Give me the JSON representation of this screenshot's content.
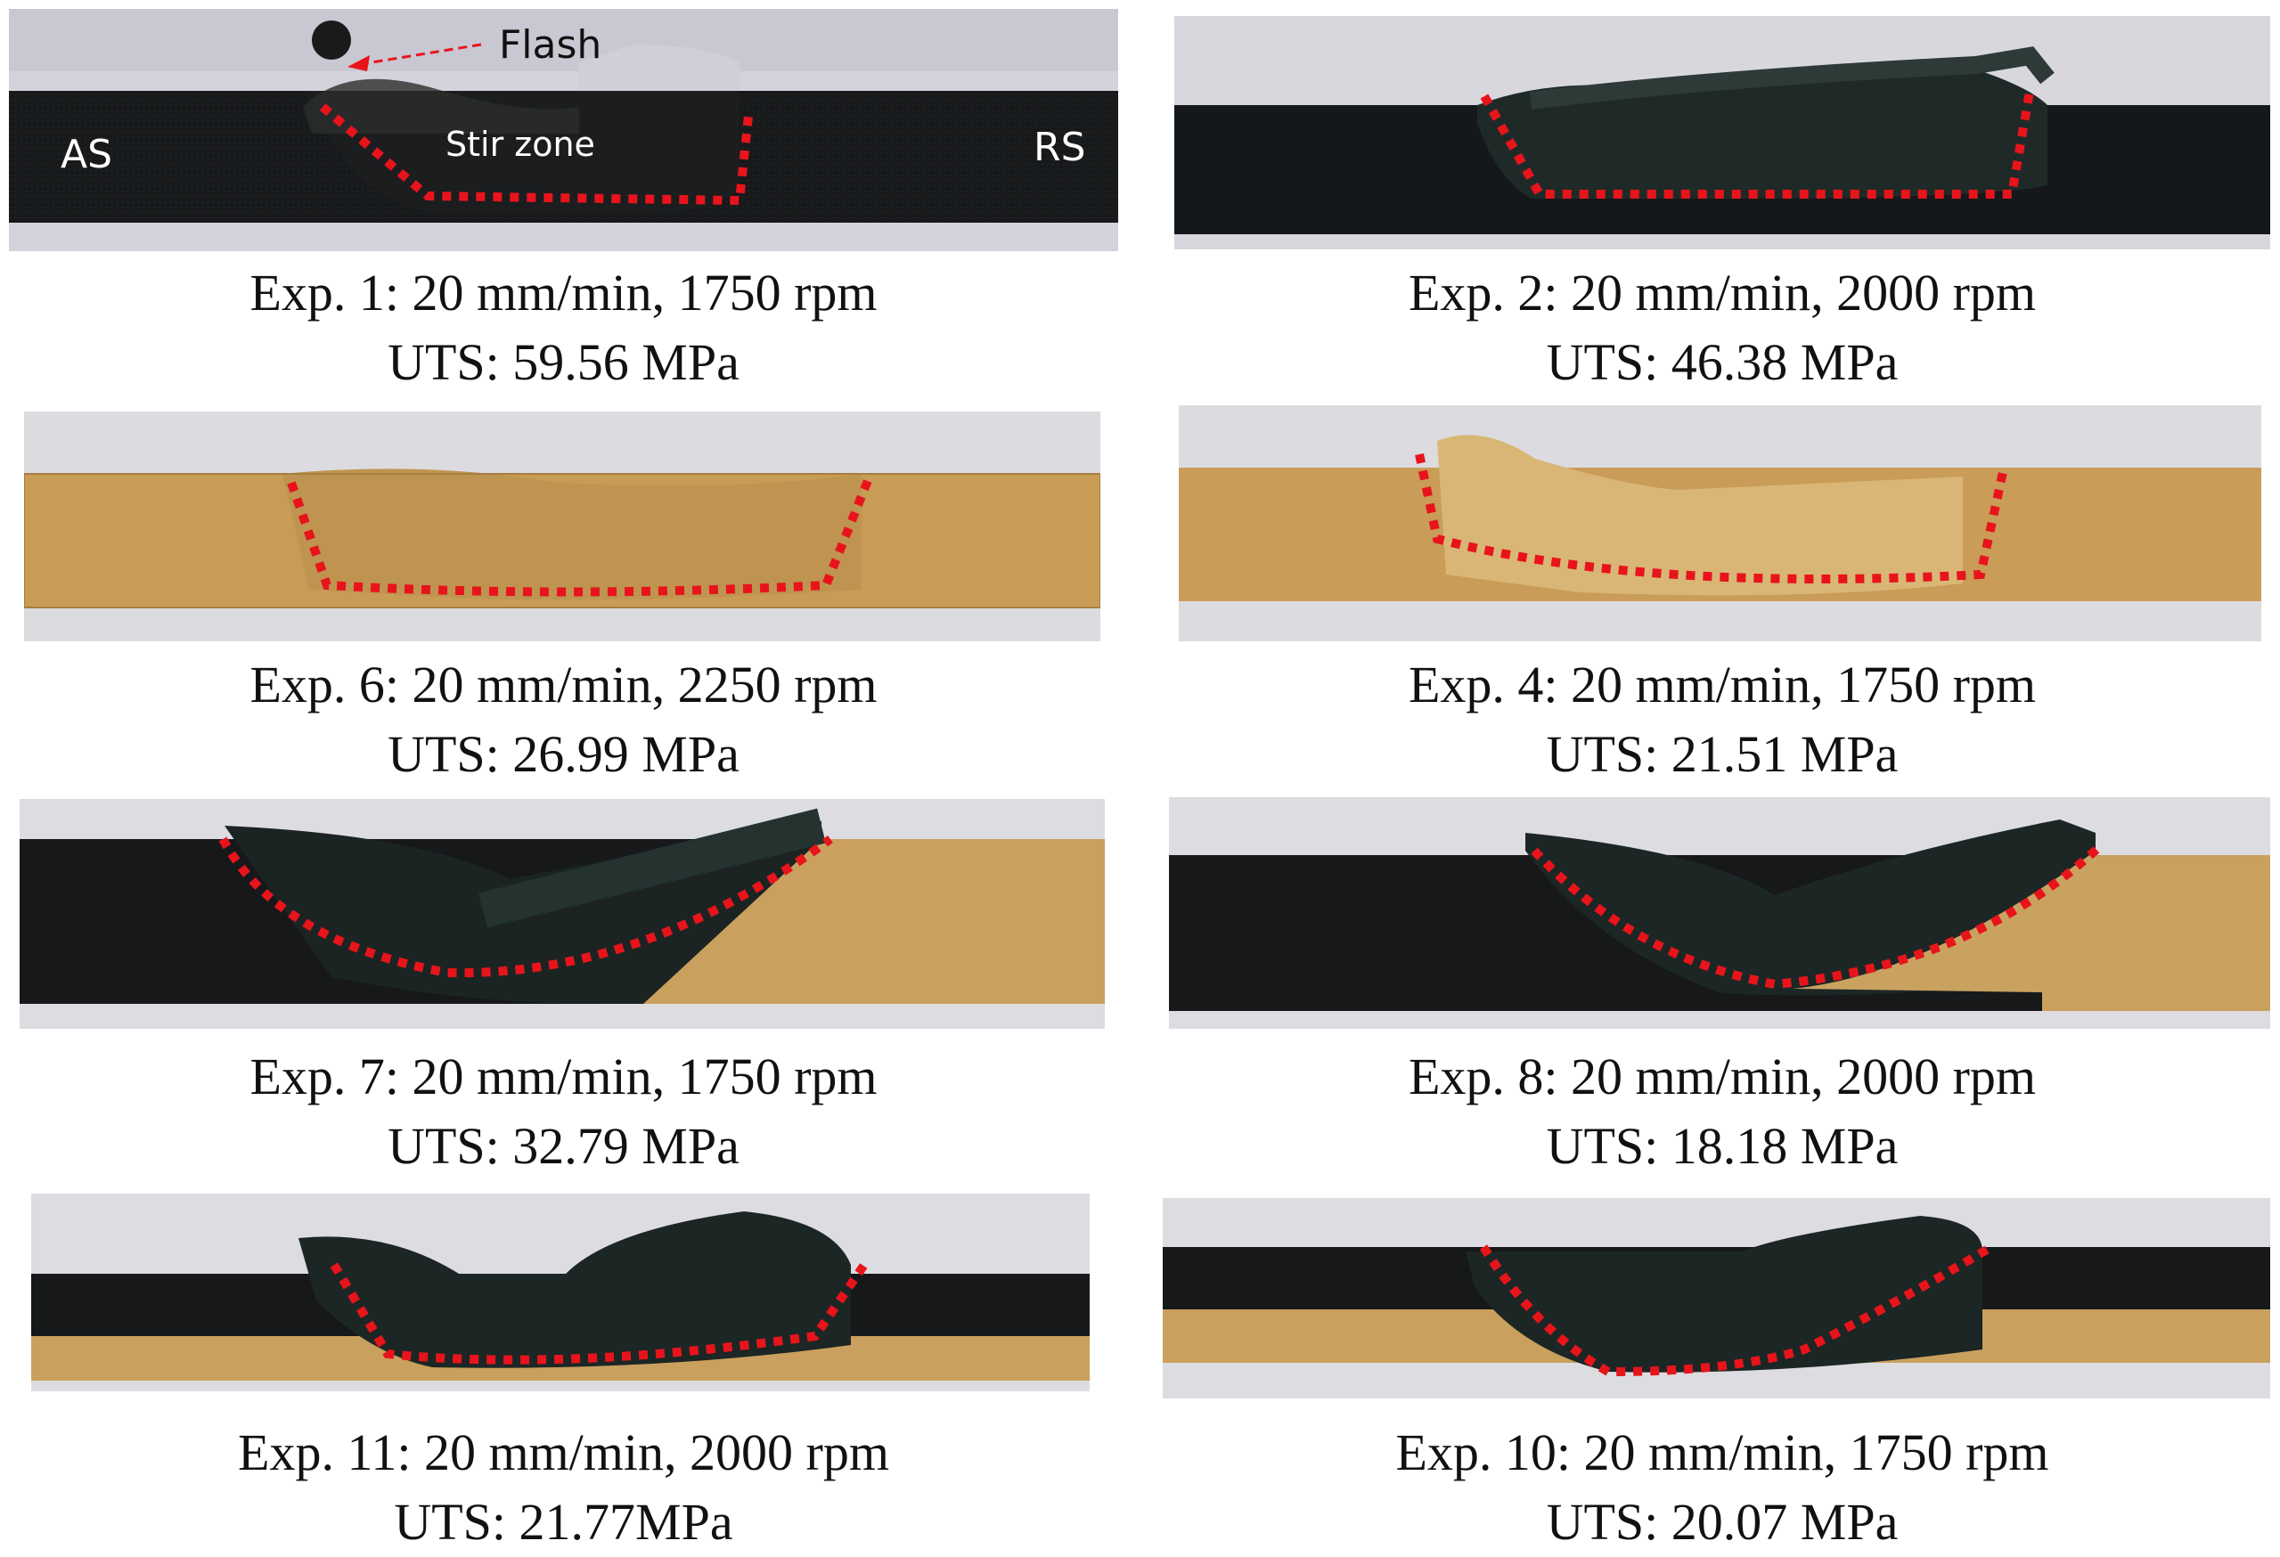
{
  "annotations": {
    "flash": "Flash",
    "stir_zone": "Stir zone",
    "advancing_side": "AS",
    "retreating_side": "RS"
  },
  "colors": {
    "black_filament": "#16181a",
    "tan_filament": "#c79a52",
    "boundary_dots": "#e8141c",
    "background": "#d9d8df"
  },
  "panels": [
    {
      "experiment": "Exp. 1: 20 mm/min, 1750 rpm",
      "uts": "UTS: 59.56 MPa",
      "material": "black"
    },
    {
      "experiment": "Exp. 2: 20 mm/min, 2000 rpm",
      "uts": "UTS: 46.38 MPa",
      "material": "black"
    },
    {
      "experiment": "Exp. 6: 20 mm/min, 2250 rpm",
      "uts": "UTS: 26.99 MPa",
      "material": "tan"
    },
    {
      "experiment": "Exp. 4: 20 mm/min, 1750 rpm",
      "uts": "UTS: 21.51 MPa",
      "material": "tan"
    },
    {
      "experiment": "Exp. 7: 20 mm/min, 1750 rpm",
      "uts": "UTS: 32.79 MPa",
      "material": "black-tan"
    },
    {
      "experiment": "Exp. 8: 20 mm/min, 2000 rpm",
      "uts": "UTS: 18.18 MPa",
      "material": "black-tan"
    },
    {
      "experiment": "Exp. 11: 20 mm/min, 2000 rpm",
      "uts": "UTS: 21.77MPa",
      "material": "layered"
    },
    {
      "experiment": "Exp. 10: 20 mm/min, 1750 rpm",
      "uts": "UTS: 20.07 MPa",
      "material": "layered"
    }
  ]
}
